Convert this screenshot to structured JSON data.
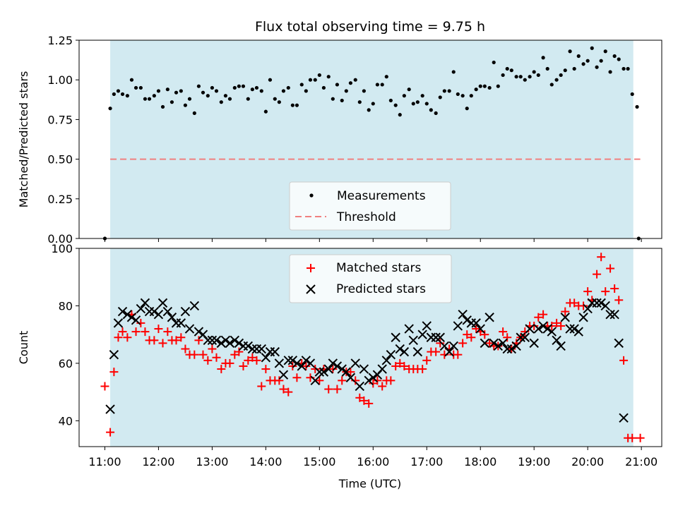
{
  "title": "Flux total observing time = 9.75 h",
  "xlabel": "Time (UTC)",
  "xtick_labels": [
    "11:00",
    "12:00",
    "13:00",
    "14:00",
    "15:00",
    "16:00",
    "17:00",
    "18:00",
    "19:00",
    "20:00",
    "21:00"
  ],
  "colors": {
    "span": "#add8e6",
    "measurement": "#000000",
    "threshold": "#f08080",
    "matched": "#ff0000",
    "predicted": "#000000"
  },
  "chart_data": [
    {
      "type": "scatter",
      "panel": "top",
      "ylabel": "Matched/Predicted stars",
      "xlim": [
        10.52,
        21.38
      ],
      "ylim": [
        0,
        1.25
      ],
      "yticks": [
        0,
        0.25,
        0.5,
        0.75,
        1.0,
        1.25
      ],
      "ytick_labels": [
        "0.00",
        "0.25",
        "0.50",
        "0.75",
        "1.00",
        "1.25"
      ],
      "observing_span": [
        11.1,
        20.85
      ],
      "threshold": 0.5,
      "legend": {
        "position": "lower-center",
        "entries": [
          "Measurements",
          "Threshold"
        ]
      },
      "x": [
        11.0,
        11.1,
        11.17,
        11.25,
        11.33,
        11.42,
        11.5,
        11.58,
        11.67,
        11.75,
        11.83,
        11.92,
        12.0,
        12.08,
        12.17,
        12.25,
        12.33,
        12.42,
        12.5,
        12.58,
        12.67,
        12.75,
        12.83,
        12.92,
        13.0,
        13.08,
        13.17,
        13.25,
        13.33,
        13.42,
        13.5,
        13.58,
        13.67,
        13.75,
        13.83,
        13.92,
        14.0,
        14.08,
        14.17,
        14.25,
        14.33,
        14.42,
        14.5,
        14.58,
        14.67,
        14.75,
        14.83,
        14.92,
        15.0,
        15.08,
        15.17,
        15.25,
        15.33,
        15.42,
        15.5,
        15.58,
        15.67,
        15.75,
        15.83,
        15.92,
        16.0,
        16.08,
        16.17,
        16.25,
        16.33,
        16.42,
        16.5,
        16.58,
        16.67,
        16.75,
        16.83,
        16.92,
        17.0,
        17.08,
        17.17,
        17.25,
        17.33,
        17.42,
        17.5,
        17.58,
        17.67,
        17.75,
        17.83,
        17.92,
        18.0,
        18.08,
        18.17,
        18.25,
        18.33,
        18.42,
        18.5,
        18.58,
        18.67,
        18.75,
        18.83,
        18.92,
        19.0,
        19.08,
        19.17,
        19.25,
        19.33,
        19.42,
        19.5,
        19.58,
        19.67,
        19.75,
        19.83,
        19.92,
        20.0,
        20.08,
        20.17,
        20.25,
        20.33,
        20.42,
        20.5,
        20.58,
        20.67,
        20.75,
        20.83,
        20.92
      ],
      "series": [
        {
          "name": "Measurements",
          "values": [
            0.0,
            0.82,
            0.91,
            0.93,
            0.91,
            0.9,
            1.0,
            0.95,
            0.95,
            0.88,
            0.88,
            0.9,
            0.93,
            0.83,
            0.94,
            0.86,
            0.92,
            0.93,
            0.84,
            0.88,
            0.79,
            0.96,
            0.92,
            0.9,
            0.95,
            0.93,
            0.86,
            0.9,
            0.88,
            0.95,
            0.96,
            0.96,
            0.88,
            0.94,
            0.95,
            0.93,
            0.8,
            1.0,
            0.88,
            0.86,
            0.93,
            0.95,
            0.84,
            0.84,
            0.97,
            0.93,
            1.0,
            1.0,
            1.03,
            0.95,
            1.02,
            0.88,
            0.97,
            0.87,
            0.93,
            0.98,
            1.0,
            0.86,
            0.93,
            0.81,
            0.85,
            0.97,
            0.97,
            1.02,
            0.87,
            0.84,
            0.78,
            0.9,
            0.94,
            0.85,
            0.86,
            0.9,
            0.85,
            0.81,
            0.79,
            0.89,
            0.93,
            0.93,
            1.05,
            0.91,
            0.9,
            0.82,
            0.9,
            0.94,
            0.96,
            0.96,
            0.95,
            1.11,
            0.96,
            1.03,
            1.07,
            1.06,
            1.02,
            1.02,
            1.0,
            1.02,
            1.05,
            1.03,
            1.14,
            1.07,
            0.97,
            1.0,
            1.03,
            1.06,
            1.18,
            1.07,
            1.15,
            1.1,
            1.12,
            1.2,
            1.08,
            1.12,
            1.18,
            1.05,
            1.15,
            1.13,
            1.07,
            1.07,
            0.91,
            0.83
          ]
        },
        {
          "name": "Threshold",
          "values": [
            0.5
          ]
        }
      ]
    },
    {
      "type": "scatter",
      "panel": "bottom",
      "ylabel": "Count",
      "xlim": [
        10.52,
        21.38
      ],
      "ylim": [
        31,
        100
      ],
      "yticks": [
        40,
        60,
        80,
        100
      ],
      "ytick_labels": [
        "40",
        "60",
        "80",
        "100"
      ],
      "observing_span": [
        11.1,
        20.85
      ],
      "legend": {
        "position": "upper-center",
        "entries": [
          "Matched stars",
          "Predicted stars"
        ]
      },
      "x": [
        11.0,
        11.1,
        11.17,
        11.25,
        11.33,
        11.42,
        11.5,
        11.58,
        11.67,
        11.75,
        11.83,
        11.92,
        12.0,
        12.08,
        12.17,
        12.25,
        12.33,
        12.42,
        12.5,
        12.58,
        12.67,
        12.75,
        12.83,
        12.92,
        13.0,
        13.08,
        13.17,
        13.25,
        13.33,
        13.42,
        13.5,
        13.58,
        13.67,
        13.75,
        13.83,
        13.92,
        14.0,
        14.08,
        14.17,
        14.25,
        14.33,
        14.42,
        14.5,
        14.58,
        14.67,
        14.75,
        14.83,
        14.92,
        15.0,
        15.08,
        15.17,
        15.25,
        15.33,
        15.42,
        15.5,
        15.58,
        15.67,
        15.75,
        15.83,
        15.92,
        16.0,
        16.08,
        16.17,
        16.25,
        16.33,
        16.42,
        16.5,
        16.58,
        16.67,
        16.75,
        16.83,
        16.92,
        17.0,
        17.08,
        17.17,
        17.25,
        17.33,
        17.42,
        17.5,
        17.58,
        17.67,
        17.75,
        17.83,
        17.92,
        18.0,
        18.08,
        18.17,
        18.25,
        18.33,
        18.42,
        18.5,
        18.58,
        18.67,
        18.75,
        18.83,
        18.92,
        19.0,
        19.08,
        19.17,
        19.25,
        19.33,
        19.42,
        19.5,
        19.58,
        19.67,
        19.75,
        19.83,
        19.92,
        20.0,
        20.08,
        20.17,
        20.25,
        20.33,
        20.42,
        20.5,
        20.58,
        20.67,
        20.75,
        20.83,
        20.92
      ],
      "series": [
        {
          "name": "Matched stars",
          "values": [
            52,
            36,
            57,
            69,
            71,
            69,
            77,
            71,
            74,
            71,
            68,
            68,
            72,
            67,
            71,
            68,
            68,
            69,
            65,
            63,
            63,
            68,
            63,
            61,
            65,
            62,
            58,
            60,
            60,
            63,
            64,
            59,
            61,
            62,
            61,
            52,
            58,
            54,
            54,
            54,
            51,
            50,
            59,
            55,
            60,
            59,
            55,
            58,
            54,
            58,
            51,
            58,
            51,
            54,
            57,
            57,
            54,
            48,
            47,
            46,
            53,
            54,
            52,
            54,
            54,
            59,
            60,
            59,
            58,
            58,
            58,
            58,
            61,
            64,
            64,
            67,
            63,
            65,
            63,
            63,
            67,
            70,
            69,
            72,
            71,
            70,
            67,
            66,
            66,
            71,
            69,
            65,
            67,
            69,
            71,
            73,
            73,
            76,
            77,
            73,
            73,
            74,
            73,
            78,
            81,
            81,
            80,
            80,
            85,
            82,
            91,
            97,
            85,
            93,
            86,
            82,
            61,
            34,
            34,
            null
          ]
        },
        {
          "name": "Predicted stars",
          "values": [
            null,
            44,
            63,
            74,
            78,
            77,
            76,
            75,
            79,
            81,
            78,
            78,
            77,
            81,
            78,
            76,
            74,
            74,
            78,
            72,
            80,
            71,
            70,
            68,
            68,
            68,
            67,
            68,
            67,
            68,
            67,
            66,
            66,
            65,
            65,
            65,
            62,
            64,
            64,
            60,
            56,
            61,
            61,
            60,
            59,
            61,
            60,
            54,
            57,
            57,
            58,
            60,
            59,
            58,
            57,
            55,
            60,
            52,
            58,
            54,
            55,
            56,
            58,
            61,
            63,
            69,
            65,
            64,
            72,
            68,
            64,
            70,
            73,
            69,
            69,
            69,
            66,
            64,
            66,
            73,
            77,
            75,
            74,
            74,
            72,
            67,
            76,
            67,
            66,
            67,
            65,
            65,
            66,
            69,
            69,
            72,
            67,
            72,
            73,
            72,
            71,
            68,
            66,
            76,
            72,
            72,
            71,
            76,
            79,
            81,
            81,
            81,
            80,
            77,
            77,
            67,
            41,
            null,
            null,
            null
          ]
        }
      ]
    }
  ]
}
